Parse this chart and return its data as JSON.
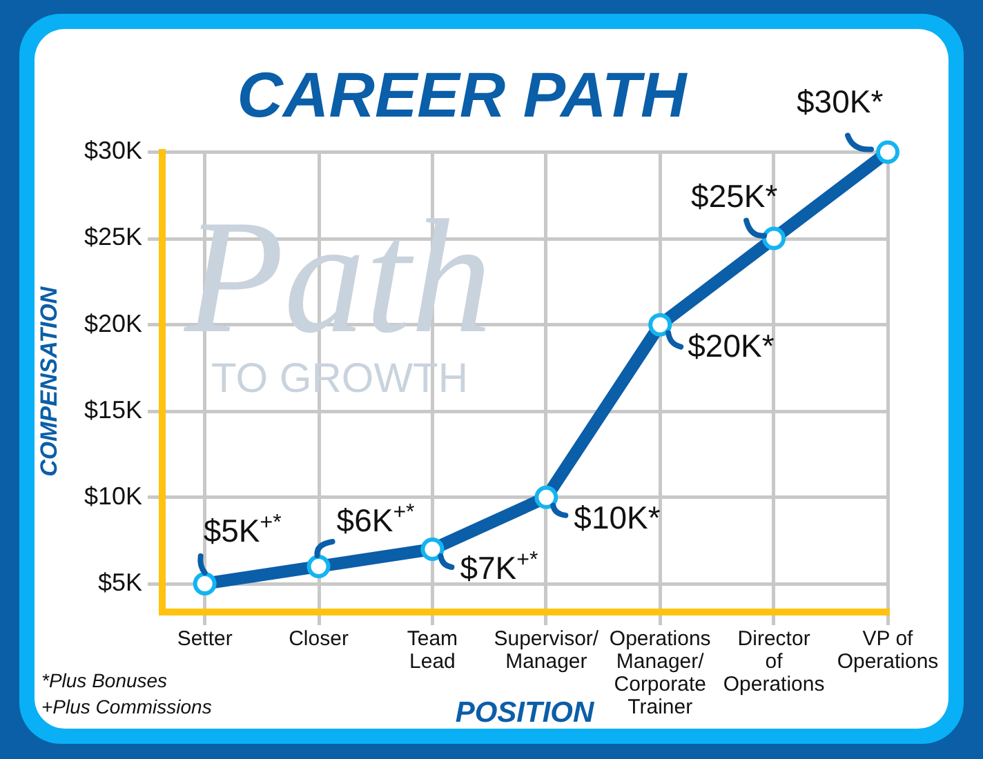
{
  "chart_data": {
    "type": "line",
    "title": "CAREER PATH",
    "xlabel": "POSITION",
    "ylabel": "COMPENSATION",
    "categories": [
      "Setter",
      "Closer",
      "Team Lead",
      "Supervisor/ Manager",
      "Operations Manager/ Corporate Trainer",
      "Director of Operations",
      "VP of Operations"
    ],
    "series": [
      {
        "color": "#0b5ea8",
        "values": [
          5,
          6,
          7,
          10,
          20,
          25,
          30
        ],
        "value_labels": [
          "$5K$^{+*}$",
          "$6K$^{+*}$",
          "$7K$^{+*}$",
          "$10K*",
          "$20K*",
          "$25K*",
          "$30K*"
        ]
      }
    ],
    "ylim": [
      3.4,
      30
    ],
    "yticks": [
      {
        "value": 5,
        "label": "$5K"
      },
      {
        "value": 10,
        "label": "$10K"
      },
      {
        "value": 15,
        "label": "$15K"
      },
      {
        "value": 20,
        "label": "$20K"
      },
      {
        "value": 25,
        "label": "$25K"
      },
      {
        "value": 30,
        "label": "$30K"
      }
    ],
    "grid": true,
    "marker": "circle",
    "line_style": "solid",
    "annotations": [
      "Path",
      "TO GROWTH",
      "*Plus Bonuses",
      "+Plus Commissions"
    ]
  }
}
